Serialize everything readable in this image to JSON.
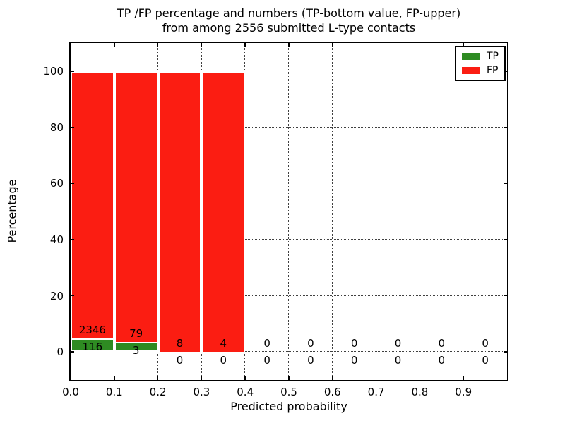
{
  "chart_data": {
    "type": "bar",
    "stacked": true,
    "normalized_to_percent": true,
    "title_lines": [
      "TP /FP percentage and numbers (TP-bottom value, FP-upper)",
      "from among 2556 submitted L-type contacts"
    ],
    "xlabel": "Predicted probability",
    "ylabel": "Percentage",
    "total_contacts": 2556,
    "xlim": [
      0.0,
      1.0
    ],
    "ylim": [
      -10,
      110
    ],
    "x_tick_values": [
      0.0,
      0.1,
      0.2,
      0.3,
      0.4,
      0.5,
      0.6,
      0.7,
      0.8,
      0.9
    ],
    "x_tick_labels": [
      "0.0",
      "0.1",
      "0.2",
      "0.3",
      "0.4",
      "0.5",
      "0.6",
      "0.7",
      "0.8",
      "0.9"
    ],
    "y_tick_values": [
      0,
      20,
      40,
      60,
      80,
      100
    ],
    "y_tick_labels": [
      "0",
      "20",
      "40",
      "60",
      "80",
      "100"
    ],
    "grid": "dotted",
    "legend_position": "upper right",
    "legend": [
      {
        "label": "TP",
        "color": "#2e8b22"
      },
      {
        "label": "FP",
        "color": "#fb1d12"
      }
    ],
    "annotation_rule": "FP count printed above TP count at each bin",
    "bins": [
      {
        "x0": 0.0,
        "x1": 0.1,
        "tp": 116,
        "fp": 2346
      },
      {
        "x0": 0.1,
        "x1": 0.2,
        "tp": 3,
        "fp": 79
      },
      {
        "x0": 0.2,
        "x1": 0.3,
        "tp": 0,
        "fp": 8
      },
      {
        "x0": 0.3,
        "x1": 0.4,
        "tp": 0,
        "fp": 4
      },
      {
        "x0": 0.4,
        "x1": 0.5,
        "tp": 0,
        "fp": 0
      },
      {
        "x0": 0.5,
        "x1": 0.6,
        "tp": 0,
        "fp": 0
      },
      {
        "x0": 0.6,
        "x1": 0.7,
        "tp": 0,
        "fp": 0
      },
      {
        "x0": 0.7,
        "x1": 0.8,
        "tp": 0,
        "fp": 0
      },
      {
        "x0": 0.8,
        "x1": 0.9,
        "tp": 0,
        "fp": 0
      },
      {
        "x0": 0.9,
        "x1": 1.0,
        "tp": 0,
        "fp": 0
      }
    ],
    "colors": {
      "tp": "#2e8b22",
      "fp": "#fb1d12",
      "bar_edge": "#ffffff",
      "axis": "#000000",
      "background": "#ffffff"
    }
  }
}
